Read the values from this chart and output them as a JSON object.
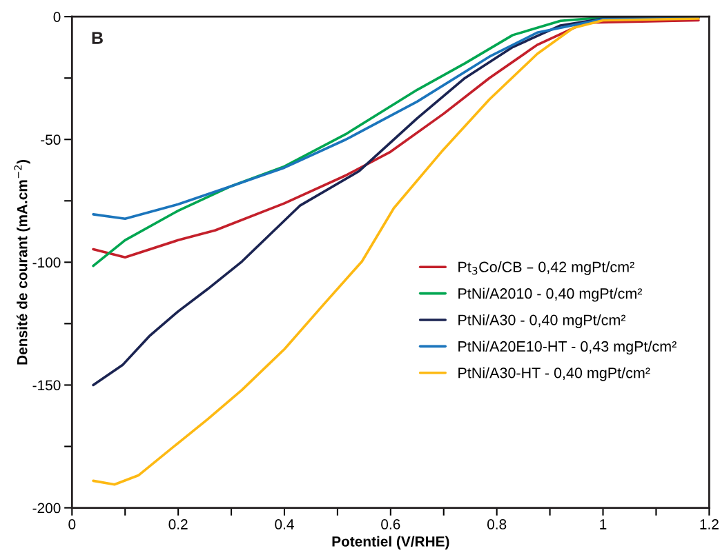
{
  "chart_data": {
    "type": "line",
    "xlabel": "Potentiel (V/RHE)",
    "ylabel": "Densité de courant (mA.cm$^{−2}$)",
    "annotations": [
      "B"
    ],
    "xlim": [
      0,
      1.2
    ],
    "ylim": [
      -200,
      0
    ],
    "xticks": [
      0,
      {
        "value": 0.1,
        "label": null
      },
      0.2,
      {
        "value": 0.3,
        "label": null
      },
      0.4,
      {
        "value": 0.5,
        "label": null
      },
      0.6,
      {
        "value": 0.7,
        "label": null
      },
      0.8,
      {
        "value": 0.9,
        "label": null
      },
      1,
      {
        "value": 1.1,
        "label": null
      },
      1.2
    ],
    "yticks": [
      -200,
      {
        "value": -175,
        "label": null
      },
      -150,
      {
        "value": -125,
        "label": null
      },
      -100,
      {
        "value": -75,
        "label": null
      },
      -50,
      {
        "value": -25,
        "label": null
      },
      0
    ],
    "grid": false,
    "legend": "center right",
    "marker": "none",
    "line_style": "solid",
    "series": [
      {
        "name": "Pt$_{3}$Co/CB – 0,42 mgPt/cm²",
        "color": "#c4202b",
        "x": [
          0.04,
          0.1,
          0.2,
          0.27,
          0.4,
          0.516,
          0.6,
          0.7,
          0.786,
          0.876,
          0.966,
          1.18
        ],
        "values": [
          -94.7,
          -98,
          -91,
          -87,
          -76,
          -64.6,
          -55,
          -39.5,
          -25,
          -11.5,
          -2.5,
          -1.5
        ]
      },
      {
        "name": "PtNi/A2010 - 0,40 mgPt/cm²",
        "color": "#00a651",
        "x": [
          0.04,
          0.1,
          0.2,
          0.3,
          0.4,
          0.516,
          0.65,
          0.74,
          0.83,
          0.92,
          1.0,
          1.18
        ],
        "values": [
          -101.5,
          -91,
          -79,
          -69,
          -61,
          -47.8,
          -29.8,
          -19,
          -7.5,
          -1.7,
          -0.3,
          -0.2
        ]
      },
      {
        "name": "PtNi/A30 - 0,40 mgPt/cm²",
        "color": "#1b2452",
        "x": [
          0.04,
          0.095,
          0.147,
          0.2,
          0.255,
          0.32,
          0.429,
          0.54,
          0.65,
          0.74,
          0.83,
          0.92,
          1.0,
          1.18
        ],
        "values": [
          -150,
          -141.9,
          -129.8,
          -120,
          -111,
          -99.7,
          -77,
          -63,
          -41.4,
          -25,
          -12.4,
          -3.6,
          -0.8,
          -0.3
        ]
      },
      {
        "name": "PtNi/A20E10-HT - 0,43 mgPt/cm²",
        "color": "#1b75bc",
        "x": [
          0.04,
          0.1,
          0.2,
          0.3,
          0.4,
          0.516,
          0.65,
          0.786,
          0.876,
          1.0,
          1.18
        ],
        "values": [
          -80.5,
          -82.3,
          -76.4,
          -69,
          -61.5,
          -50,
          -34.6,
          -16.3,
          -6.5,
          -1,
          -0.5
        ]
      },
      {
        "name": "PtNi/A30-HT - 0,40 mgPt/cm²",
        "color": "#fdb913",
        "x": [
          0.04,
          0.08,
          0.125,
          0.2,
          0.255,
          0.32,
          0.4,
          0.473,
          0.546,
          0.606,
          0.696,
          0.786,
          0.876,
          0.944,
          1.0,
          1.18
        ],
        "values": [
          -189,
          -190.5,
          -186.8,
          -173.6,
          -164,
          -152,
          -135.4,
          -117.4,
          -99.7,
          -78,
          -55,
          -33.7,
          -15.2,
          -4.6,
          -1.5,
          -0.8
        ]
      }
    ]
  }
}
